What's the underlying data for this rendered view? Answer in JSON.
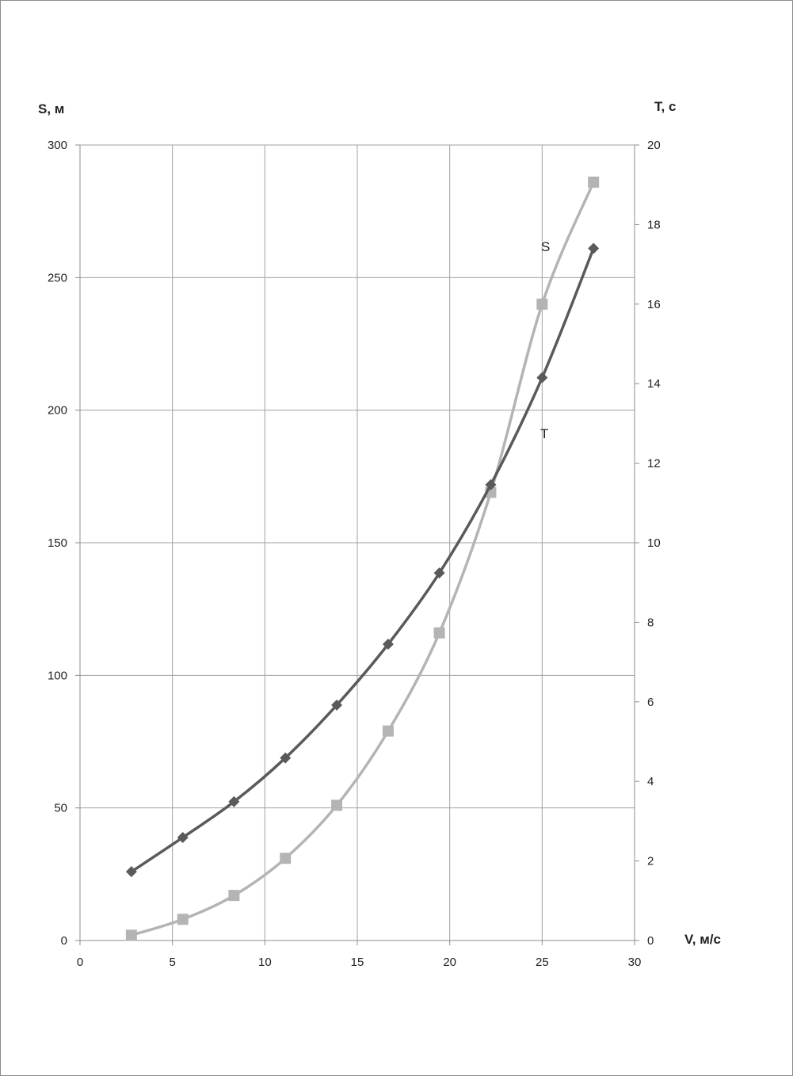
{
  "chart_data": {
    "type": "line",
    "x_axis": {
      "label": "V, м/с",
      "range": [
        0,
        30
      ],
      "ticks": [
        "0",
        "5",
        "10",
        "15",
        "20",
        "25",
        "30"
      ]
    },
    "y_axis_left": {
      "label": "S, м",
      "range": [
        0,
        300
      ],
      "ticks": [
        "0",
        "50",
        "100",
        "150",
        "200",
        "250",
        "300"
      ]
    },
    "y_axis_right": {
      "label": "T, с",
      "range": [
        0,
        20
      ],
      "ticks": [
        "0",
        "2",
        "4",
        "6",
        "8",
        "10",
        "12",
        "14",
        "16",
        "18",
        "20"
      ]
    },
    "grid": true,
    "legend": "none",
    "series": [
      {
        "name": "S",
        "axis": "left",
        "marker": "square",
        "color": "#b4b4b4",
        "x": [
          2.78,
          5.56,
          8.33,
          11.11,
          13.89,
          16.67,
          19.44,
          22.22,
          25.0,
          27.78
        ],
        "values": [
          2,
          8,
          17,
          31,
          51,
          79,
          116,
          169,
          240,
          286
        ]
      },
      {
        "name": "T",
        "axis": "right",
        "marker": "diamond",
        "color": "#5a5a5a",
        "x": [
          2.78,
          5.56,
          8.33,
          11.11,
          13.89,
          16.67,
          19.44,
          22.22,
          25.0,
          27.78
        ],
        "values": [
          1.73,
          2.59,
          3.49,
          4.59,
          5.92,
          7.45,
          9.24,
          11.46,
          14.15,
          17.4
        ]
      }
    ]
  }
}
